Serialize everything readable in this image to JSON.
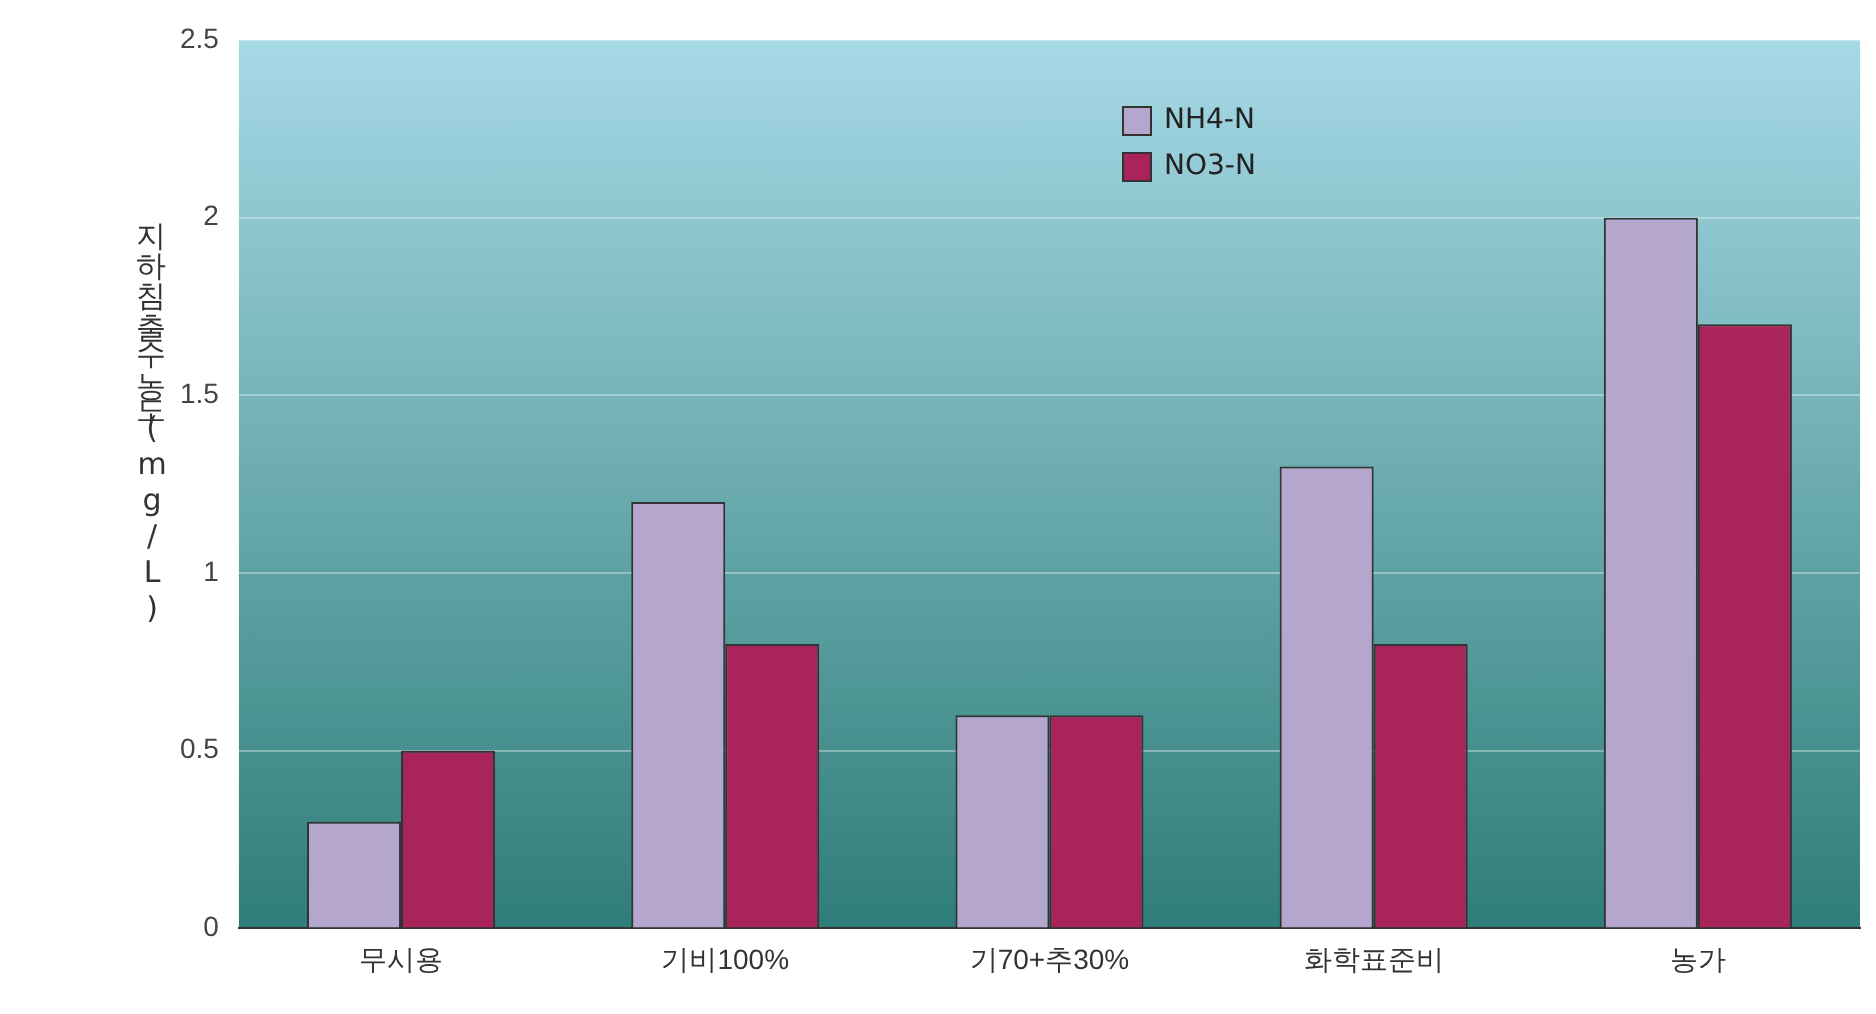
{
  "chart_data": {
    "type": "bar",
    "ylabel": "지하침출수농도(mg/L)",
    "categories": [
      "무시용",
      "기비100%",
      "기70+추30%",
      "화학표준비",
      "농가"
    ],
    "series": [
      {
        "name": "NH4-N",
        "color": "#b4a6cc",
        "values": [
          0.3,
          1.2,
          0.6,
          1.3,
          2.0
        ]
      },
      {
        "name": "NO3-N",
        "color": "#a8245a",
        "values": [
          0.5,
          0.8,
          0.6,
          0.8,
          1.7
        ]
      }
    ],
    "ylim": [
      0,
      2.5
    ],
    "yticks": [
      0,
      0.5,
      1,
      1.5,
      2,
      2.5
    ],
    "grid": "y",
    "legend": "top"
  }
}
